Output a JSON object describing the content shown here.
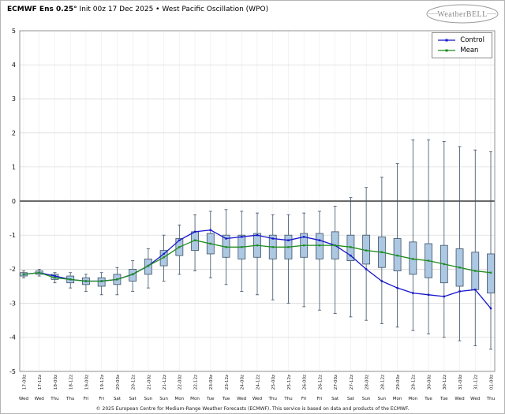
{
  "header": {
    "title_bold": "ECMWF Ens 0.25°",
    "subtitle": "Init 00z 17 Dec 2025 • West Pacific Oscillation (WPO)",
    "logo_text": "WeatherBELL"
  },
  "legend": {
    "control": "Control",
    "mean": "Mean"
  },
  "footer": {
    "copyright": "© 2025 European Centre for Medium-Range Weather Forecasts (ECMWF). This service is based on data and products of the ECMWF."
  },
  "chart_data": {
    "type": "box-whisker-ensemble",
    "title": "ECMWF Ens 0.25° Init 00z 17 Dec 2025 • West Pacific Oscillation (WPO)",
    "ylim": [
      -5,
      5
    ],
    "yticks": [
      5,
      4,
      3,
      2,
      1,
      0,
      -1,
      -2,
      -3,
      -4,
      -5
    ],
    "grid": true,
    "legend_position": "top-right",
    "x_labels": [
      "17-00z",
      "17-12z",
      "18-00z",
      "18-12z",
      "19-00z",
      "19-12z",
      "20-00z",
      "20-12z",
      "21-00z",
      "21-12z",
      "22-00z",
      "22-12z",
      "23-00z",
      "23-12z",
      "24-00z",
      "24-12z",
      "25-00z",
      "25-12z",
      "26-00z",
      "26-12z",
      "27-00z",
      "27-12z",
      "28-00z",
      "28-12z",
      "29-00z",
      "29-12z",
      "30-00z",
      "30-12z",
      "31-00z",
      "31-12z",
      "01-00z"
    ],
    "day_labels": [
      "Wed",
      "Wed",
      "Thu",
      "Thu",
      "Fri",
      "Fri",
      "Sat",
      "Sat",
      "Sun",
      "Sun",
      "Mon",
      "Mon",
      "Tue",
      "Tue",
      "Wed",
      "Wed",
      "Thu",
      "Thu",
      "Fri",
      "Fri",
      "Sat",
      "Sat",
      "Sun",
      "Sun",
      "Mon",
      "Mon",
      "Tue",
      "Tue",
      "Wed",
      "Wed",
      "Thu"
    ],
    "series": [
      {
        "name": "Control",
        "color": "#1515cc",
        "values": [
          -2.15,
          -2.1,
          -2.2,
          -2.3,
          -2.35,
          -2.35,
          -2.3,
          -2.15,
          -1.9,
          -1.55,
          -1.15,
          -0.9,
          -0.85,
          -1.1,
          -1.05,
          -1.0,
          -1.1,
          -1.15,
          -1.05,
          -1.15,
          -1.3,
          -1.6,
          -2.0,
          -2.35,
          -2.55,
          -2.7,
          -2.75,
          -2.8,
          -2.65,
          -2.6,
          -3.15
        ]
      },
      {
        "name": "Mean",
        "color": "#1e8c1e",
        "values": [
          -2.15,
          -2.1,
          -2.25,
          -2.3,
          -2.35,
          -2.35,
          -2.3,
          -2.15,
          -1.9,
          -1.65,
          -1.35,
          -1.15,
          -1.25,
          -1.35,
          -1.35,
          -1.3,
          -1.35,
          -1.35,
          -1.3,
          -1.3,
          -1.3,
          -1.35,
          -1.45,
          -1.5,
          -1.6,
          -1.7,
          -1.75,
          -1.85,
          -1.95,
          -2.05,
          -2.1
        ]
      }
    ],
    "boxes": {
      "fill": "#adc8e2",
      "stroke": "#3d5166",
      "q3": [
        -2.1,
        -2.05,
        -2.15,
        -2.2,
        -2.25,
        -2.25,
        -2.15,
        -2.0,
        -1.7,
        -1.45,
        -1.1,
        -0.9,
        -0.95,
        -1.0,
        -1.0,
        -0.95,
        -1.0,
        -1.0,
        -0.95,
        -0.95,
        -0.9,
        -1.0,
        -1.0,
        -1.05,
        -1.1,
        -1.2,
        -1.25,
        -1.3,
        -1.4,
        -1.5,
        -1.55
      ],
      "q1": [
        -2.2,
        -2.15,
        -2.3,
        -2.4,
        -2.45,
        -2.5,
        -2.45,
        -2.35,
        -2.15,
        -1.9,
        -1.6,
        -1.45,
        -1.55,
        -1.65,
        -1.7,
        -1.65,
        -1.7,
        -1.7,
        -1.65,
        -1.7,
        -1.7,
        -1.75,
        -1.85,
        -1.95,
        -2.05,
        -2.15,
        -2.25,
        -2.4,
        -2.5,
        -2.6,
        -2.7
      ],
      "hi": [
        -2.05,
        -2.0,
        -2.1,
        -2.1,
        -2.15,
        -2.1,
        -1.95,
        -1.75,
        -1.4,
        -1.0,
        -0.7,
        -0.4,
        -0.3,
        -0.25,
        -0.3,
        -0.35,
        -0.4,
        -0.4,
        -0.35,
        -0.3,
        -0.15,
        0.1,
        0.4,
        0.7,
        1.1,
        1.8,
        1.8,
        1.75,
        1.6,
        1.5,
        1.45
      ],
      "lo": [
        -2.25,
        -2.2,
        -2.4,
        -2.55,
        -2.65,
        -2.75,
        -2.75,
        -2.65,
        -2.55,
        -2.35,
        -2.15,
        -2.05,
        -2.25,
        -2.45,
        -2.65,
        -2.75,
        -2.9,
        -3.0,
        -3.1,
        -3.2,
        -3.3,
        -3.4,
        -3.5,
        -3.6,
        -3.7,
        -3.8,
        -3.9,
        -4.0,
        -4.1,
        -4.25,
        -4.35
      ]
    },
    "colors": {
      "control": "#1515cc",
      "mean": "#1e8c1e",
      "box_fill": "#adc8e2",
      "box_stroke": "#3d5166",
      "zero_line": "#111111",
      "grid_line": "#d4d4d4",
      "frame": "#888888"
    }
  }
}
